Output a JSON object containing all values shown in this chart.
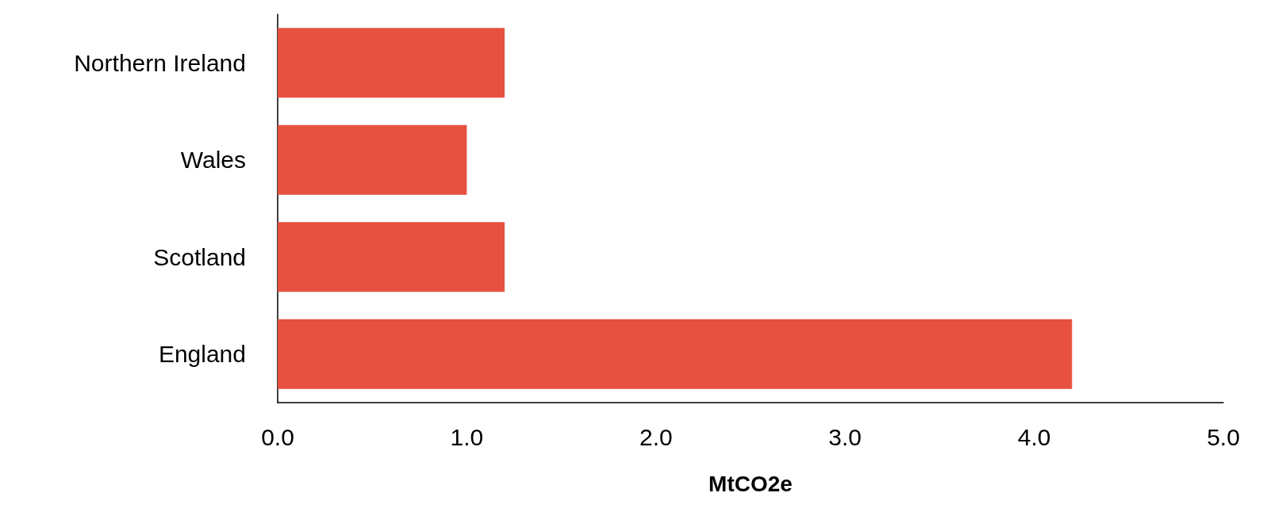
{
  "chart_data": {
    "type": "bar",
    "orientation": "horizontal",
    "categories": [
      "Northern Ireland",
      "Wales",
      "Scotland",
      "England"
    ],
    "values": [
      1.2,
      1.0,
      1.2,
      4.2
    ],
    "color": "#e65140",
    "xlim": [
      0,
      5
    ],
    "xticks": [
      {
        "value": 0,
        "label": "0.0"
      },
      {
        "value": 1,
        "label": "1.0"
      },
      {
        "value": 2,
        "label": "2.0"
      },
      {
        "value": 3,
        "label": "3.0"
      },
      {
        "value": 4,
        "label": "4.0"
      },
      {
        "value": 5,
        "label": "5.0"
      }
    ],
    "xlabel": "MtCO2e",
    "grid": false
  }
}
